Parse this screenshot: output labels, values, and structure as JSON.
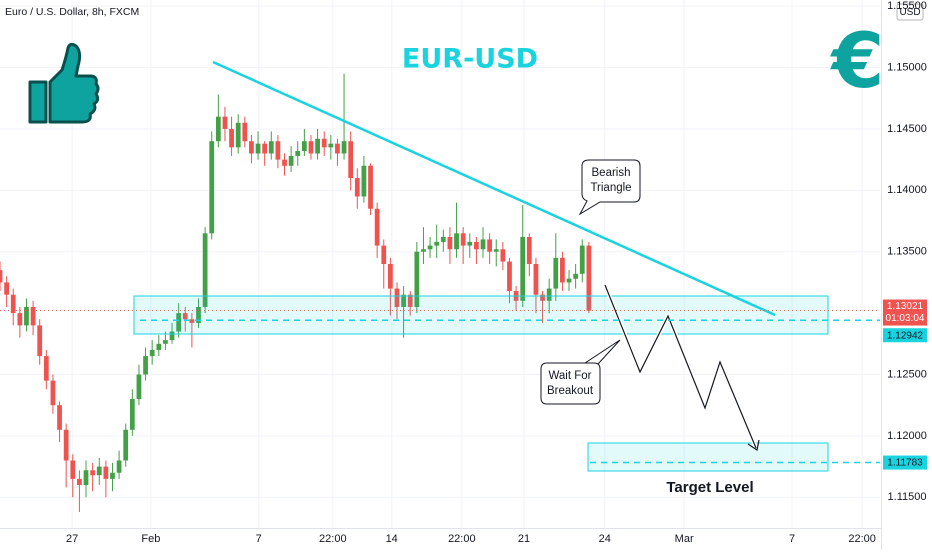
{
  "chart_data": {
    "type": "candlestick",
    "title": "EUR-USD",
    "subtitle": "Euro / U.S. Dollar, 8h, FXCM",
    "currency": "USD",
    "up_color": "#43a047",
    "down_color": "#ef5350",
    "x": [
      0,
      1,
      2,
      3,
      4,
      5,
      6,
      7,
      8,
      9,
      10,
      11,
      12,
      13,
      14,
      15,
      16,
      17,
      18,
      19,
      20,
      21,
      22,
      23,
      24,
      25,
      26,
      27,
      28,
      29,
      30,
      31,
      32,
      33,
      34,
      35,
      36,
      37,
      38,
      39,
      40,
      41,
      42,
      43,
      44,
      45,
      46,
      47,
      48,
      49,
      50,
      51,
      52,
      53,
      54,
      55,
      56,
      57,
      58,
      59,
      60,
      61,
      62,
      63,
      64,
      65,
      66,
      67,
      68,
      69,
      70,
      71,
      72,
      73,
      74,
      75,
      76,
      77,
      78,
      79,
      80,
      81,
      82,
      83,
      84,
      85,
      86,
      87,
      88,
      89
    ],
    "open": [
      1.1335,
      1.1325,
      1.1315,
      1.13,
      1.129,
      1.1305,
      1.129,
      1.1265,
      1.1245,
      1.1225,
      1.1205,
      1.118,
      1.1165,
      1.116,
      1.1172,
      1.1168,
      1.1175,
      1.1165,
      1.117,
      1.118,
      1.1205,
      1.123,
      1.125,
      1.1265,
      1.127,
      1.1275,
      1.1278,
      1.1285,
      1.13,
      1.1295,
      1.1292,
      1.1305,
      1.1365,
      1.144,
      1.146,
      1.145,
      1.1435,
      1.1455,
      1.144,
      1.143,
      1.1438,
      1.143,
      1.144,
      1.1425,
      1.142,
      1.1428,
      1.1432,
      1.144,
      1.143,
      1.1442,
      1.1435,
      1.1438,
      1.143,
      1.144,
      1.141,
      1.1395,
      1.142,
      1.1385,
      1.1355,
      1.134,
      1.132,
      1.1305,
      1.1315,
      1.1305,
      1.135,
      1.1352,
      1.1355,
      1.1358,
      1.1362,
      1.1352,
      1.1365,
      1.1355,
      1.1358,
      1.1352,
      1.136,
      1.135,
      1.1352,
      1.1342,
      1.1318,
      1.131,
      1.1362,
      1.134,
      1.1315,
      1.131,
      1.132,
      1.1345,
      1.1325,
      1.1328,
      1.1332,
      1.1355
    ],
    "high": [
      1.1342,
      1.133,
      1.132,
      1.1305,
      1.1312,
      1.131,
      1.1295,
      1.127,
      1.125,
      1.1228,
      1.121,
      1.1185,
      1.1172,
      1.118,
      1.1178,
      1.1182,
      1.118,
      1.1178,
      1.1188,
      1.121,
      1.1238,
      1.1258,
      1.1272,
      1.1278,
      1.1282,
      1.1285,
      1.1292,
      1.1308,
      1.1305,
      1.13,
      1.1312,
      1.137,
      1.1448,
      1.1478,
      1.1468,
      1.146,
      1.1462,
      1.146,
      1.1445,
      1.1448,
      1.144,
      1.1448,
      1.1445,
      1.143,
      1.1436,
      1.144,
      1.145,
      1.1445,
      1.145,
      1.1448,
      1.1445,
      1.1442,
      1.1495,
      1.1448,
      1.1418,
      1.1428,
      1.1422,
      1.139,
      1.136,
      1.1345,
      1.1325,
      1.1322,
      1.1318,
      1.1358,
      1.137,
      1.1362,
      1.1372,
      1.1368,
      1.137,
      1.139,
      1.137,
      1.1365,
      1.1362,
      1.137,
      1.1365,
      1.136,
      1.1358,
      1.1345,
      1.1322,
      1.1388,
      1.1365,
      1.1345,
      1.1318,
      1.1328,
      1.1365,
      1.135,
      1.1335,
      1.134,
      1.136,
      1.1358
    ],
    "low": [
      1.1318,
      1.1305,
      1.129,
      1.128,
      1.1285,
      1.1282,
      1.1258,
      1.1238,
      1.1218,
      1.1195,
      1.1158,
      1.115,
      1.1138,
      1.115,
      1.1155,
      1.116,
      1.115,
      1.1155,
      1.1165,
      1.1175,
      1.12,
      1.1225,
      1.1245,
      1.1258,
      1.1265,
      1.127,
      1.1275,
      1.128,
      1.1285,
      1.1272,
      1.1288,
      1.13,
      1.136,
      1.1435,
      1.144,
      1.1428,
      1.143,
      1.1435,
      1.1422,
      1.1425,
      1.142,
      1.1425,
      1.1418,
      1.1412,
      1.1415,
      1.142,
      1.1428,
      1.1425,
      1.1425,
      1.1428,
      1.1425,
      1.142,
      1.1425,
      1.14,
      1.1385,
      1.139,
      1.138,
      1.1345,
      1.132,
      1.1298,
      1.1295,
      1.128,
      1.1298,
      1.13,
      1.134,
      1.1345,
      1.1345,
      1.135,
      1.134,
      1.1345,
      1.134,
      1.1345,
      1.134,
      1.1345,
      1.134,
      1.1338,
      1.1335,
      1.1308,
      1.1302,
      1.1305,
      1.133,
      1.13,
      1.1292,
      1.13,
      1.131,
      1.1318,
      1.1318,
      1.132,
      1.1325,
      1.13
    ],
    "close": [
      1.1325,
      1.1315,
      1.13,
      1.129,
      1.1305,
      1.129,
      1.1265,
      1.1245,
      1.1225,
      1.1205,
      1.118,
      1.1165,
      1.116,
      1.1172,
      1.1168,
      1.1175,
      1.1165,
      1.117,
      1.118,
      1.1205,
      1.123,
      1.125,
      1.1265,
      1.127,
      1.1275,
      1.1278,
      1.1285,
      1.13,
      1.1295,
      1.1292,
      1.1305,
      1.1365,
      1.144,
      1.146,
      1.145,
      1.1435,
      1.1455,
      1.144,
      1.143,
      1.1438,
      1.143,
      1.144,
      1.1425,
      1.142,
      1.1428,
      1.1432,
      1.144,
      1.143,
      1.1442,
      1.1435,
      1.1438,
      1.143,
      1.144,
      1.141,
      1.1395,
      1.142,
      1.1385,
      1.1355,
      1.134,
      1.132,
      1.1305,
      1.1315,
      1.1305,
      1.135,
      1.1352,
      1.1355,
      1.1358,
      1.1362,
      1.1352,
      1.1365,
      1.1355,
      1.1358,
      1.1352,
      1.136,
      1.135,
      1.1352,
      1.1342,
      1.1318,
      1.131,
      1.1362,
      1.134,
      1.1315,
      1.131,
      1.132,
      1.1345,
      1.1325,
      1.1328,
      1.1332,
      1.1355,
      1.1302
    ],
    "xlim": [
      0,
      133
    ],
    "xticks": [
      {
        "value": 10.9,
        "label": "27"
      },
      {
        "value": 22.8,
        "label": "Feb"
      },
      {
        "value": 39.1,
        "label": "7"
      },
      {
        "value": 50.3,
        "label": "22:00"
      },
      {
        "value": 59.2,
        "label": "14"
      },
      {
        "value": 69.8,
        "label": "22:00"
      },
      {
        "value": 79.2,
        "label": "21"
      },
      {
        "value": 91.4,
        "label": "24"
      },
      {
        "value": 103.4,
        "label": "Mar"
      },
      {
        "value": 119.7,
        "label": "7"
      },
      {
        "value": 130.3,
        "label": "22:00"
      }
    ],
    "ylim": [
      1.1125,
      1.1555
    ],
    "yticks": [
      {
        "value": 1.155,
        "label": "1.15500"
      },
      {
        "value": 1.15,
        "label": "1.15000"
      },
      {
        "value": 1.145,
        "label": "1.14500"
      },
      {
        "value": 1.14,
        "label": "1.14000"
      },
      {
        "value": 1.135,
        "label": "1.13500"
      },
      {
        "value": 1.125,
        "label": "1.12500"
      },
      {
        "value": 1.12,
        "label": "1.12000"
      },
      {
        "value": 1.115,
        "label": "1.11500"
      }
    ],
    "last_price": {
      "value": 1.13021,
      "label": "1.13021",
      "countdown": "01:03:04",
      "color": "#ef5350"
    },
    "levels": [
      {
        "value": 1.12942,
        "label": "1.12942",
        "color": "#19d3df"
      },
      {
        "value": 1.11783,
        "label": "1.11783",
        "color": "#19d3df"
      }
    ],
    "annotations": {
      "triangle": [
        "Bearish",
        "Triangle"
      ],
      "breakout": [
        "Wait For",
        "Breakout"
      ],
      "target": "Target Level",
      "euro": "€"
    }
  }
}
